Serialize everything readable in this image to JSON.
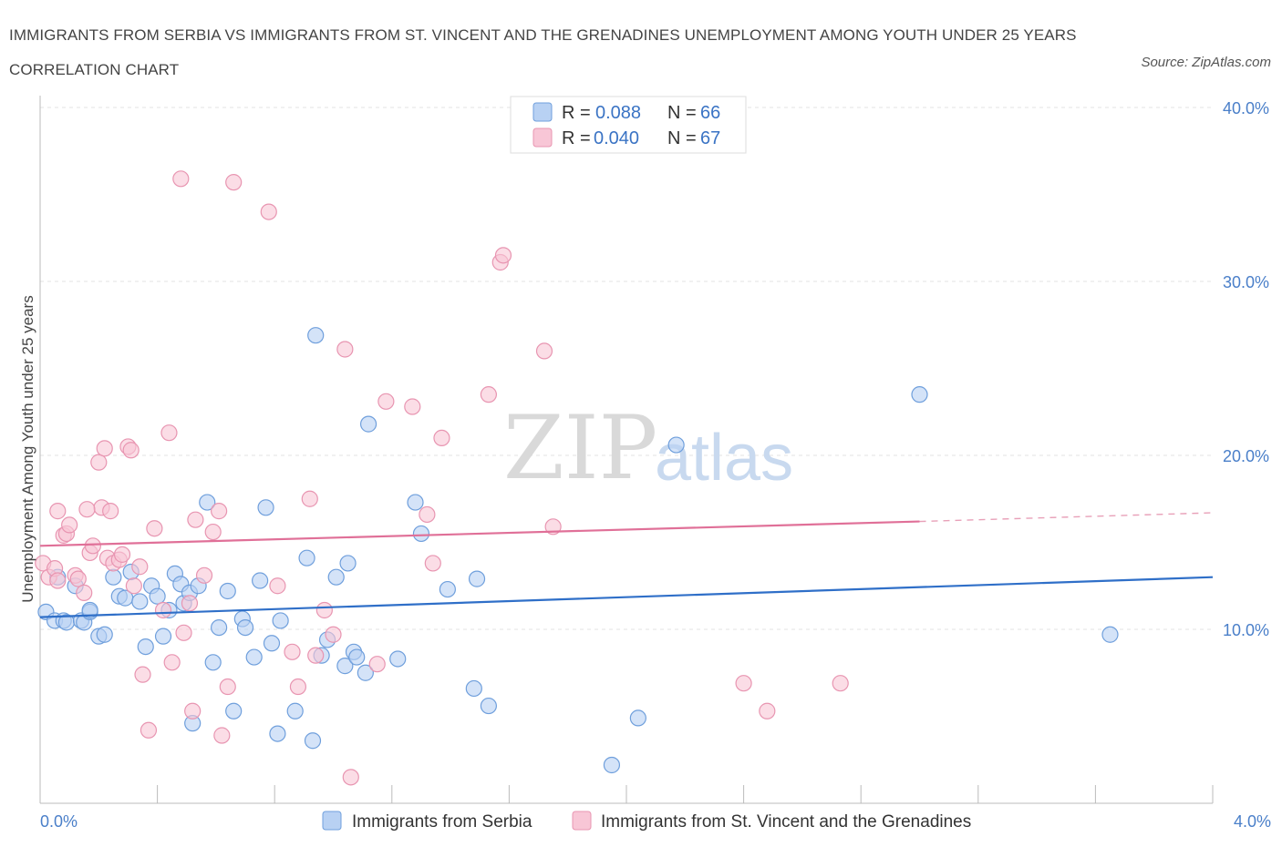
{
  "title": "IMMIGRANTS FROM SERBIA VS IMMIGRANTS FROM ST. VINCENT AND THE GRENADINES UNEMPLOYMENT AMONG YOUTH UNDER 25 YEARS CORRELATION CHART",
  "source": "Source: ZipAtlas.com",
  "watermark": {
    "zip": "ZIP",
    "atlas": "atlas"
  },
  "chart_data": {
    "type": "scatter",
    "xlabel": "",
    "ylabel": "Unemployment Among Youth under 25 years",
    "xlim": [
      0,
      4
    ],
    "ylim": [
      0,
      40
    ],
    "x_tick_labels": [
      "0.0%",
      "4.0%"
    ],
    "y_ticks": [
      10,
      20,
      30,
      40
    ],
    "y_tick_labels": [
      "10.0%",
      "20.0%",
      "30.0%",
      "40.0%"
    ],
    "grid": true,
    "legend": {
      "placement": "top-center",
      "entries": [
        {
          "r_label": "R =",
          "r_value": "0.088",
          "n_label": "N =",
          "n_value": "66"
        },
        {
          "r_label": "R =",
          "r_value": "0.040",
          "n_label": "N =",
          "n_value": "67"
        }
      ]
    },
    "series": [
      {
        "name": "Immigrants from Serbia",
        "color": "#6f9fdc",
        "fill": "#b8d1f3",
        "trend": {
          "x": [
            0,
            4
          ],
          "y": [
            10.7,
            13.0
          ],
          "style": "solid"
        },
        "points": [
          [
            0.02,
            11.0
          ],
          [
            0.05,
            10.5
          ],
          [
            0.06,
            13.0
          ],
          [
            0.08,
            10.5
          ],
          [
            0.09,
            10.4
          ],
          [
            0.12,
            12.5
          ],
          [
            0.14,
            10.5
          ],
          [
            0.15,
            10.4
          ],
          [
            0.17,
            11.0
          ],
          [
            0.17,
            11.1
          ],
          [
            0.2,
            9.6
          ],
          [
            0.22,
            9.7
          ],
          [
            0.25,
            13.0
          ],
          [
            0.27,
            11.9
          ],
          [
            0.29,
            11.8
          ],
          [
            0.31,
            13.3
          ],
          [
            0.34,
            11.6
          ],
          [
            0.36,
            9.0
          ],
          [
            0.38,
            12.5
          ],
          [
            0.4,
            11.9
          ],
          [
            0.42,
            9.6
          ],
          [
            0.44,
            11.1
          ],
          [
            0.46,
            13.2
          ],
          [
            0.48,
            12.6
          ],
          [
            0.49,
            11.5
          ],
          [
            0.51,
            12.1
          ],
          [
            0.54,
            12.5
          ],
          [
            0.57,
            17.3
          ],
          [
            0.59,
            8.1
          ],
          [
            0.61,
            10.1
          ],
          [
            0.64,
            12.2
          ],
          [
            0.66,
            5.3
          ],
          [
            0.69,
            10.6
          ],
          [
            0.7,
            10.1
          ],
          [
            0.73,
            8.4
          ],
          [
            0.75,
            12.8
          ],
          [
            0.77,
            17.0
          ],
          [
            0.79,
            9.2
          ],
          [
            0.81,
            4.0
          ],
          [
            0.82,
            10.5
          ],
          [
            0.87,
            5.3
          ],
          [
            0.91,
            14.1
          ],
          [
            0.93,
            3.6
          ],
          [
            0.94,
            26.9
          ],
          [
            0.96,
            8.5
          ],
          [
            0.98,
            9.4
          ],
          [
            1.01,
            13.0
          ],
          [
            1.04,
            7.9
          ],
          [
            1.05,
            13.8
          ],
          [
            1.07,
            8.7
          ],
          [
            1.08,
            8.4
          ],
          [
            1.11,
            7.5
          ],
          [
            1.12,
            21.8
          ],
          [
            1.22,
            8.3
          ],
          [
            1.28,
            17.3
          ],
          [
            1.3,
            15.5
          ],
          [
            1.39,
            12.3
          ],
          [
            1.48,
            6.6
          ],
          [
            1.49,
            12.9
          ],
          [
            1.53,
            5.6
          ],
          [
            1.95,
            2.2
          ],
          [
            2.04,
            4.9
          ],
          [
            2.17,
            20.6
          ],
          [
            3.0,
            23.5
          ],
          [
            0.52,
            4.6
          ],
          [
            3.65,
            9.7
          ]
        ]
      },
      {
        "name": "Immigrants from St. Vincent and the Grenadines",
        "color": "#e895b1",
        "fill": "#f8c6d6",
        "trend": {
          "x": [
            0,
            3.0
          ],
          "y": [
            14.8,
            16.2
          ],
          "x_dash": [
            3.0,
            4.0
          ],
          "y_dash": [
            16.2,
            16.7
          ],
          "style": "solid-then-dashed"
        },
        "points": [
          [
            0.01,
            13.8
          ],
          [
            0.03,
            13.0
          ],
          [
            0.05,
            13.5
          ],
          [
            0.06,
            12.8
          ],
          [
            0.08,
            15.4
          ],
          [
            0.09,
            15.5
          ],
          [
            0.1,
            16.0
          ],
          [
            0.12,
            13.1
          ],
          [
            0.13,
            12.9
          ],
          [
            0.15,
            12.1
          ],
          [
            0.17,
            14.4
          ],
          [
            0.18,
            14.8
          ],
          [
            0.2,
            19.6
          ],
          [
            0.21,
            17.0
          ],
          [
            0.23,
            14.1
          ],
          [
            0.24,
            16.8
          ],
          [
            0.25,
            13.8
          ],
          [
            0.27,
            14.0
          ],
          [
            0.28,
            14.3
          ],
          [
            0.3,
            20.5
          ],
          [
            0.31,
            20.3
          ],
          [
            0.32,
            12.5
          ],
          [
            0.34,
            13.6
          ],
          [
            0.35,
            7.4
          ],
          [
            0.37,
            4.2
          ],
          [
            0.39,
            15.8
          ],
          [
            0.42,
            11.1
          ],
          [
            0.44,
            21.3
          ],
          [
            0.45,
            8.1
          ],
          [
            0.48,
            35.9
          ],
          [
            0.49,
            9.8
          ],
          [
            0.51,
            11.5
          ],
          [
            0.52,
            5.3
          ],
          [
            0.53,
            16.3
          ],
          [
            0.56,
            13.1
          ],
          [
            0.59,
            15.6
          ],
          [
            0.61,
            16.8
          ],
          [
            0.62,
            3.9
          ],
          [
            0.64,
            6.7
          ],
          [
            0.66,
            35.7
          ],
          [
            0.78,
            34.0
          ],
          [
            0.81,
            12.5
          ],
          [
            0.86,
            8.7
          ],
          [
            0.88,
            6.7
          ],
          [
            0.92,
            17.5
          ],
          [
            0.94,
            8.5
          ],
          [
            0.97,
            11.1
          ],
          [
            1.0,
            9.7
          ],
          [
            1.04,
            26.1
          ],
          [
            1.06,
            1.5
          ],
          [
            1.15,
            8.0
          ],
          [
            1.18,
            23.1
          ],
          [
            1.27,
            22.8
          ],
          [
            1.32,
            16.6
          ],
          [
            1.34,
            13.8
          ],
          [
            1.37,
            21.0
          ],
          [
            1.53,
            23.5
          ],
          [
            1.57,
            31.1
          ],
          [
            1.58,
            31.5
          ],
          [
            1.72,
            26.0
          ],
          [
            1.75,
            15.9
          ],
          [
            2.4,
            6.9
          ],
          [
            2.48,
            5.3
          ],
          [
            2.73,
            6.9
          ],
          [
            0.06,
            16.8
          ],
          [
            0.16,
            16.9
          ],
          [
            0.22,
            20.4
          ]
        ]
      }
    ]
  }
}
